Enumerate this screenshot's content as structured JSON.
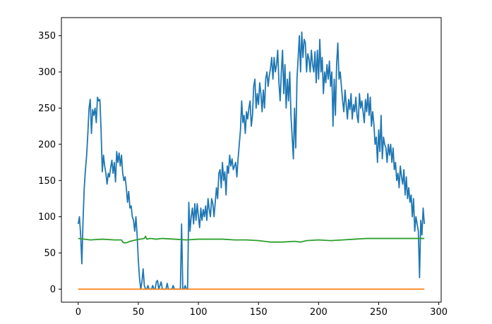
{
  "chart_data": {
    "type": "line",
    "title": "",
    "xlabel": "",
    "ylabel": "",
    "xlim": [
      -14,
      302
    ],
    "ylim": [
      -18,
      375
    ],
    "x_ticks": [
      0,
      50,
      100,
      150,
      200,
      250,
      300
    ],
    "y_ticks": [
      0,
      50,
      100,
      150,
      200,
      250,
      300,
      350
    ],
    "grid": false,
    "legend": "none",
    "series": [
      {
        "color": "#1f77b4",
        "points": [
          [
            0,
            90
          ],
          [
            1,
            100
          ],
          [
            2,
            75
          ],
          [
            3,
            35
          ],
          [
            4,
            95
          ],
          [
            5,
            140
          ],
          [
            6,
            165
          ],
          [
            7,
            185
          ],
          [
            8,
            215
          ],
          [
            9,
            250
          ],
          [
            10,
            262
          ],
          [
            11,
            215
          ],
          [
            12,
            248
          ],
          [
            13,
            240
          ],
          [
            14,
            250
          ],
          [
            15,
            230
          ],
          [
            16,
            265
          ],
          [
            17,
            260
          ],
          [
            18,
            262
          ],
          [
            19,
            220
          ],
          [
            20,
            162
          ],
          [
            21,
            185
          ],
          [
            22,
            170
          ],
          [
            23,
            160
          ],
          [
            24,
            145
          ],
          [
            25,
            160
          ],
          [
            26,
            155
          ],
          [
            27,
            168
          ],
          [
            28,
            178
          ],
          [
            29,
            160
          ],
          [
            30,
            175
          ],
          [
            31,
            148
          ],
          [
            32,
            190
          ],
          [
            33,
            175
          ],
          [
            34,
            188
          ],
          [
            35,
            170
          ],
          [
            36,
            185
          ],
          [
            37,
            160
          ],
          [
            38,
            150
          ],
          [
            39,
            155
          ],
          [
            40,
            140
          ],
          [
            41,
            120
          ],
          [
            42,
            135
          ],
          [
            43,
            112
          ],
          [
            44,
            115
          ],
          [
            45,
            100
          ],
          [
            46,
            95
          ],
          [
            47,
            80
          ],
          [
            48,
            100
          ],
          [
            49,
            75
          ],
          [
            50,
            40
          ],
          [
            51,
            15
          ],
          [
            52,
            0
          ],
          [
            53,
            10
          ],
          [
            54,
            28
          ],
          [
            55,
            5
          ],
          [
            56,
            0
          ],
          [
            57,
            0
          ],
          [
            58,
            5
          ],
          [
            59,
            0
          ],
          [
            60,
            0
          ],
          [
            61,
            0
          ],
          [
            62,
            5
          ],
          [
            63,
            0
          ],
          [
            64,
            0
          ],
          [
            65,
            10
          ],
          [
            66,
            12
          ],
          [
            67,
            0
          ],
          [
            68,
            5
          ],
          [
            69,
            10
          ],
          [
            70,
            0
          ],
          [
            71,
            0
          ],
          [
            72,
            0
          ],
          [
            73,
            0
          ],
          [
            74,
            8
          ],
          [
            75,
            0
          ],
          [
            76,
            0
          ],
          [
            77,
            0
          ],
          [
            78,
            0
          ],
          [
            79,
            5
          ],
          [
            80,
            0
          ],
          [
            81,
            0
          ],
          [
            82,
            0
          ],
          [
            83,
            0
          ],
          [
            84,
            0
          ],
          [
            85,
            0
          ],
          [
            86,
            90
          ],
          [
            87,
            0
          ],
          [
            88,
            0
          ],
          [
            89,
            5
          ],
          [
            90,
            0
          ],
          [
            91,
            0
          ],
          [
            92,
            120
          ],
          [
            93,
            80
          ],
          [
            94,
            100
          ],
          [
            95,
            112
          ],
          [
            96,
            90
          ],
          [
            97,
            118
          ],
          [
            98,
            95
          ],
          [
            99,
            118
          ],
          [
            100,
            100
          ],
          [
            101,
            85
          ],
          [
            102,
            112
          ],
          [
            103,
            95
          ],
          [
            104,
            110
          ],
          [
            105,
            100
          ],
          [
            106,
            115
          ],
          [
            107,
            95
          ],
          [
            108,
            125
          ],
          [
            109,
            110
          ],
          [
            110,
            100
          ],
          [
            111,
            125
          ],
          [
            112,
            118
          ],
          [
            113,
            100
          ],
          [
            114,
            120
          ],
          [
            115,
            140
          ],
          [
            116,
            125
          ],
          [
            117,
            160
          ],
          [
            118,
            165
          ],
          [
            119,
            140
          ],
          [
            120,
            175
          ],
          [
            121,
            150
          ],
          [
            122,
            162
          ],
          [
            123,
            130
          ],
          [
            124,
            170
          ],
          [
            125,
            160
          ],
          [
            126,
            185
          ],
          [
            127,
            170
          ],
          [
            128,
            180
          ],
          [
            129,
            165
          ],
          [
            130,
            170
          ],
          [
            131,
            175
          ],
          [
            132,
            155
          ],
          [
            133,
            180
          ],
          [
            134,
            200
          ],
          [
            135,
            220
          ],
          [
            136,
            260
          ],
          [
            137,
            230
          ],
          [
            138,
            240
          ],
          [
            139,
            215
          ],
          [
            140,
            245
          ],
          [
            141,
            235
          ],
          [
            142,
            250
          ],
          [
            143,
            260
          ],
          [
            144,
            225
          ],
          [
            145,
            240
          ],
          [
            146,
            280
          ],
          [
            147,
            290
          ],
          [
            148,
            250
          ],
          [
            149,
            270
          ],
          [
            150,
            255
          ],
          [
            151,
            285
          ],
          [
            152,
            270
          ],
          [
            153,
            245
          ],
          [
            154,
            275
          ],
          [
            155,
            250
          ],
          [
            156,
            290
          ],
          [
            157,
            300
          ],
          [
            158,
            280
          ],
          [
            159,
            295
          ],
          [
            160,
            305
          ],
          [
            161,
            320
          ],
          [
            162,
            290
          ],
          [
            163,
            320
          ],
          [
            164,
            300
          ],
          [
            165,
            310
          ],
          [
            166,
            330
          ],
          [
            167,
            285
          ],
          [
            168,
            260
          ],
          [
            169,
            300
          ],
          [
            170,
            330
          ],
          [
            171,
            270
          ],
          [
            172,
            310
          ],
          [
            173,
            250
          ],
          [
            174,
            290
          ],
          [
            175,
            260
          ],
          [
            176,
            300
          ],
          [
            177,
            240
          ],
          [
            178,
            210
          ],
          [
            179,
            180
          ],
          [
            180,
            250
          ],
          [
            181,
            195
          ],
          [
            182,
            290
          ],
          [
            183,
            320
          ],
          [
            184,
            350
          ],
          [
            185,
            300
          ],
          [
            186,
            355
          ],
          [
            187,
            320
          ],
          [
            188,
            345
          ],
          [
            189,
            340
          ],
          [
            190,
            300
          ],
          [
            191,
            325
          ],
          [
            192,
            318
          ],
          [
            193,
            300
          ],
          [
            194,
            330
          ],
          [
            195,
            310
          ],
          [
            196,
            300
          ],
          [
            197,
            328
          ],
          [
            198,
            285
          ],
          [
            199,
            330
          ],
          [
            200,
            290
          ],
          [
            201,
            345
          ],
          [
            202,
            300
          ],
          [
            203,
            320
          ],
          [
            204,
            270
          ],
          [
            205,
            300
          ],
          [
            206,
            285
          ],
          [
            207,
            310
          ],
          [
            208,
            290
          ],
          [
            209,
            315
          ],
          [
            210,
            280
          ],
          [
            211,
            300
          ],
          [
            212,
            225
          ],
          [
            213,
            290
          ],
          [
            214,
            240
          ],
          [
            215,
            310
          ],
          [
            216,
            340
          ],
          [
            217,
            290
          ],
          [
            218,
            300
          ],
          [
            219,
            280
          ],
          [
            220,
            260
          ],
          [
            221,
            245
          ],
          [
            222,
            275
          ],
          [
            223,
            255
          ],
          [
            224,
            235
          ],
          [
            225,
            262
          ],
          [
            226,
            248
          ],
          [
            227,
            270
          ],
          [
            228,
            235
          ],
          [
            229,
            255
          ],
          [
            230,
            245
          ],
          [
            231,
            265
          ],
          [
            232,
            240
          ],
          [
            233,
            230
          ],
          [
            234,
            270
          ],
          [
            235,
            250
          ],
          [
            236,
            260
          ],
          [
            237,
            245
          ],
          [
            238,
            230
          ],
          [
            239,
            262
          ],
          [
            240,
            245
          ],
          [
            241,
            270
          ],
          [
            242,
            240
          ],
          [
            243,
            265
          ],
          [
            244,
            225
          ],
          [
            245,
            245
          ],
          [
            246,
            228
          ],
          [
            247,
            200
          ],
          [
            248,
            210
          ],
          [
            249,
            175
          ],
          [
            250,
            220
          ],
          [
            251,
            190
          ],
          [
            252,
            240
          ],
          [
            253,
            180
          ],
          [
            254,
            210
          ],
          [
            255,
            200
          ],
          [
            256,
            195
          ],
          [
            257,
            175
          ],
          [
            258,
            200
          ],
          [
            259,
            185
          ],
          [
            260,
            200
          ],
          [
            261,
            175
          ],
          [
            262,
            195
          ],
          [
            263,
            165
          ],
          [
            264,
            175
          ],
          [
            265,
            150
          ],
          [
            266,
            160
          ],
          [
            267,
            140
          ],
          [
            268,
            170
          ],
          [
            269,
            155
          ],
          [
            270,
            145
          ],
          [
            271,
            165
          ],
          [
            272,
            130
          ],
          [
            273,
            155
          ],
          [
            274,
            125
          ],
          [
            275,
            140
          ],
          [
            276,
            120
          ],
          [
            277,
            130
          ],
          [
            278,
            100
          ],
          [
            279,
            125
          ],
          [
            280,
            80
          ],
          [
            281,
            100
          ],
          [
            282,
            90
          ],
          [
            283,
            80
          ],
          [
            284,
            16
          ],
          [
            285,
            95
          ],
          [
            286,
            75
          ],
          [
            287,
            112
          ],
          [
            288,
            90
          ]
        ]
      },
      {
        "color": "#ff7f0e",
        "points": [
          [
            0,
            0
          ],
          [
            288,
            0
          ]
        ]
      },
      {
        "color": "#2ca02c",
        "points": [
          [
            0,
            70
          ],
          [
            10,
            68
          ],
          [
            20,
            69
          ],
          [
            30,
            68
          ],
          [
            36,
            68
          ],
          [
            37,
            65
          ],
          [
            38,
            64
          ],
          [
            40,
            64
          ],
          [
            43,
            66
          ],
          [
            48,
            68
          ],
          [
            55,
            70
          ],
          [
            56,
            73
          ],
          [
            57,
            69
          ],
          [
            60,
            70
          ],
          [
            65,
            69
          ],
          [
            70,
            70
          ],
          [
            80,
            69
          ],
          [
            90,
            68
          ],
          [
            100,
            69
          ],
          [
            110,
            69
          ],
          [
            120,
            69
          ],
          [
            130,
            68
          ],
          [
            140,
            68
          ],
          [
            150,
            67
          ],
          [
            155,
            66
          ],
          [
            160,
            65
          ],
          [
            170,
            65
          ],
          [
            180,
            66
          ],
          [
            185,
            65
          ],
          [
            190,
            67
          ],
          [
            200,
            68
          ],
          [
            210,
            67
          ],
          [
            220,
            68
          ],
          [
            230,
            69
          ],
          [
            240,
            70
          ],
          [
            250,
            70
          ],
          [
            260,
            70
          ],
          [
            270,
            70
          ],
          [
            280,
            70
          ],
          [
            288,
            70
          ]
        ]
      }
    ]
  }
}
